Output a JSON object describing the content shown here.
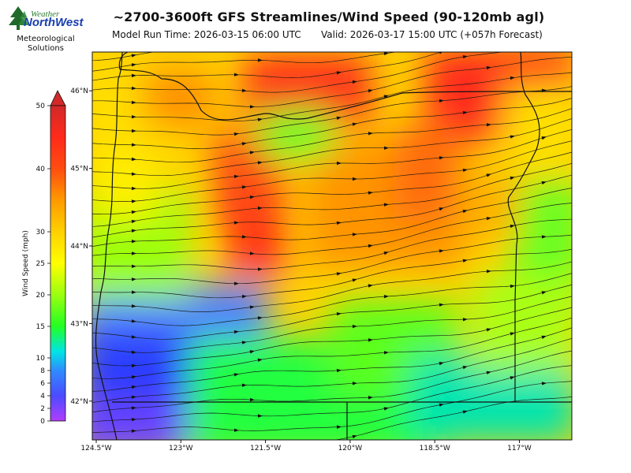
{
  "header": {
    "title": "~2700-3600ft GFS Streamlines/Wind Speed (90-120mb agl)",
    "model_run": "Model Run Time: 2026-03-15 06:00 UTC",
    "valid": "Valid: 2026-03-17 15:00 UTC  (+057h Forecast)"
  },
  "logo": {
    "line1": "Weather",
    "line2": "NorthWest",
    "line3": "Meteorological",
    "line4": "Solutions",
    "icon": "evergreen-tree-icon"
  },
  "colorbar": {
    "label": "Wind Speed (mph)",
    "ticks": [
      "0",
      "2",
      "4",
      "6",
      "8",
      "10",
      "15",
      "20",
      "25",
      "30",
      "40",
      "50"
    ],
    "tick_values": [
      0,
      2,
      4,
      6,
      8,
      10,
      15,
      20,
      25,
      30,
      40,
      50
    ],
    "extend": "max",
    "colors": {
      "purple": "#b23dff",
      "blue": "#2f6cff",
      "cyan": "#00e5e5",
      "green": "#23ff23",
      "yellow": "#ffff00",
      "orange": "#ff9a00",
      "red": "#ff2a1a",
      "dark_red": "#d12929"
    }
  },
  "map": {
    "x_ticks": [
      "124.5°W",
      "123°W",
      "121.5°W",
      "120°W",
      "118.5°W",
      "117°W"
    ],
    "x_tick_values": [
      -124.5,
      -123,
      -121.5,
      -120,
      -118.5,
      -117
    ],
    "y_ticks": [
      "42°N",
      "43°N",
      "44°N",
      "45°N",
      "46°N"
    ],
    "y_tick_values": [
      42,
      43,
      44,
      45,
      46
    ],
    "extent": {
      "lon": [
        -124.5,
        -116.0
      ],
      "lat": [
        41.5,
        46.5
      ]
    },
    "prevailing_flow": "westerly, veering to southwesterly over eastern Oregon"
  }
}
